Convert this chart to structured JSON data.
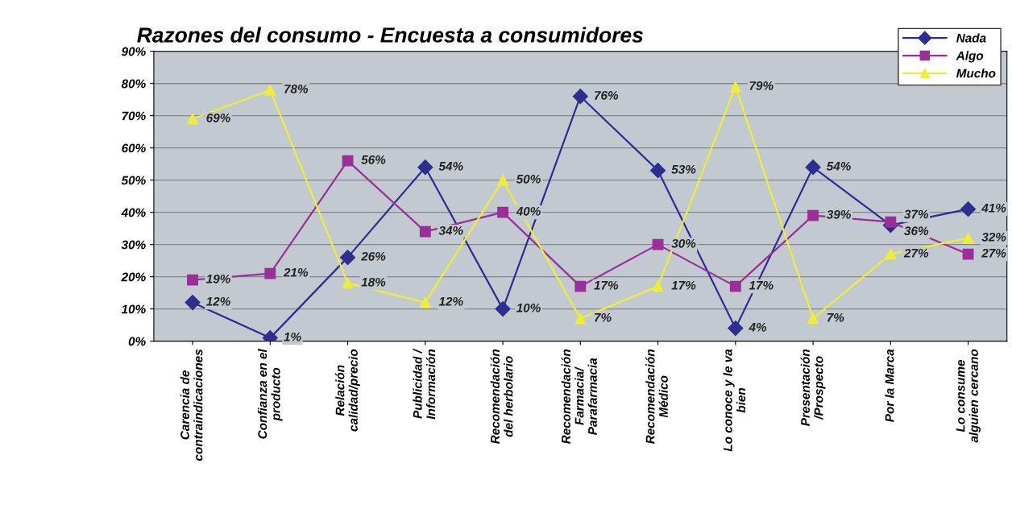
{
  "chart_data": {
    "type": "line",
    "title": "Razones del consumo - Encuesta a consumidores",
    "categories": [
      "Carencia de\ncontraindicaciones",
      "Confianza en el\nproducto",
      "Relación\ncalidad/precio",
      "Publicidad /\nInformación",
      "Recomendación\ndel herbolario",
      "Recomendación\nFarmacia/\nParafarmacia",
      "Recomendación\nMédico",
      "Lo conoce y le va\nbien",
      "Presentación\n/Prospecto",
      "Por la Marca",
      "Lo consume\nalguien cercano"
    ],
    "series": [
      {
        "name": "Nada",
        "color": "#2e2e90",
        "marker": "diamond",
        "values": [
          12,
          1,
          26,
          54,
          10,
          76,
          53,
          4,
          54,
          36,
          41
        ],
        "value_labels": [
          "12%",
          "1%",
          "26%",
          "54%",
          "10%",
          "76%",
          "53%",
          "4%",
          "54%",
          "36%",
          "41%"
        ]
      },
      {
        "name": "Algo",
        "color": "#9a2f9a",
        "marker": "square",
        "values": [
          19,
          21,
          56,
          34,
          40,
          17,
          30,
          17,
          39,
          37,
          27
        ],
        "value_labels": [
          "19%",
          "21%",
          "56%",
          "34%",
          "40%",
          "17%",
          "30%",
          "17%",
          "39%",
          "37%",
          "27%"
        ]
      },
      {
        "name": "Mucho",
        "color": "#eeee3a",
        "marker": "triangle",
        "values": [
          69,
          78,
          18,
          12,
          50,
          7,
          17,
          79,
          7,
          27,
          32
        ],
        "value_labels": [
          "69%",
          "78%",
          "18%",
          "12%",
          "50%",
          "7%",
          "17%",
          "79%",
          "7%",
          "27%",
          "32%"
        ]
      }
    ],
    "ylim": [
      0,
      90
    ],
    "yticks": [
      {
        "value": 0,
        "label": "0%"
      },
      {
        "value": 10,
        "label": "10%"
      },
      {
        "value": 20,
        "label": "20%"
      },
      {
        "value": 30,
        "label": "30%"
      },
      {
        "value": 40,
        "label": "40%"
      },
      {
        "value": 50,
        "label": "50%"
      },
      {
        "value": 60,
        "label": "60%"
      },
      {
        "value": 70,
        "label": "70%"
      },
      {
        "value": 80,
        "label": "80%"
      },
      {
        "value": 90,
        "label": "90%"
      }
    ],
    "grid": "y",
    "legend": "top right"
  }
}
